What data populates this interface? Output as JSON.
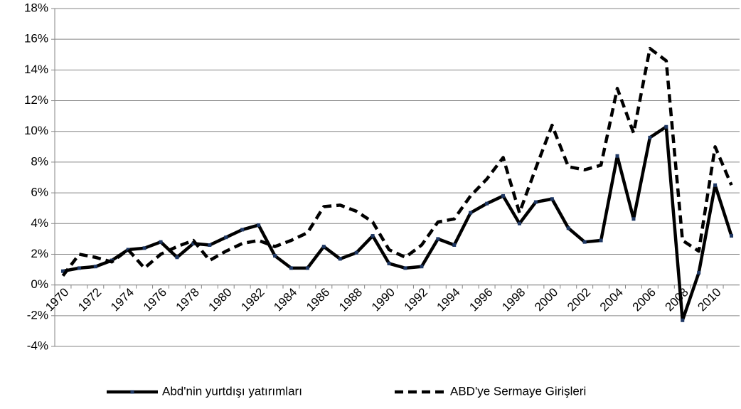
{
  "chart_data": {
    "type": "line",
    "categories": [
      "1970",
      null,
      "1972",
      null,
      "1974",
      null,
      "1976",
      null,
      "1978",
      null,
      "1980",
      null,
      "1982",
      null,
      "1984",
      null,
      "1986",
      null,
      "1988",
      null,
      "1990",
      null,
      "1992",
      null,
      "1994",
      null,
      "1996",
      null,
      "1998",
      null,
      "2000",
      null,
      "2002",
      null,
      "2004",
      null,
      "2006",
      null,
      "2008",
      null,
      "2010",
      null
    ],
    "series": [
      {
        "name": "Abd'nin yurtdışı yatırımları",
        "color": "#000000",
        "line_style": "solid",
        "marker": "square",
        "marker_color": "#1f3864",
        "values": [
          0.9,
          1.1,
          1.2,
          1.6,
          2.3,
          2.4,
          2.8,
          1.8,
          2.7,
          2.6,
          3.1,
          3.6,
          3.9,
          1.9,
          1.1,
          1.1,
          2.5,
          1.7,
          2.1,
          3.2,
          1.4,
          1.1,
          1.2,
          3.0,
          2.6,
          4.7,
          5.3,
          5.8,
          4.0,
          5.4,
          5.6,
          3.7,
          2.8,
          2.9,
          8.4,
          4.3,
          9.6,
          10.3,
          -2.3,
          0.8,
          6.5,
          3.2
        ]
      },
      {
        "name": "ABD'ye Sermaye Girişleri",
        "color": "#000000",
        "line_style": "dashed",
        "marker": "none",
        "values": [
          0.6,
          2.0,
          1.8,
          1.5,
          2.3,
          1.1,
          2.0,
          2.5,
          2.9,
          1.6,
          2.2,
          2.7,
          2.9,
          2.5,
          2.9,
          3.4,
          5.1,
          5.2,
          4.8,
          4.1,
          2.3,
          1.8,
          2.6,
          4.1,
          4.3,
          5.8,
          6.9,
          8.3,
          4.7,
          7.6,
          10.4,
          7.7,
          7.5,
          7.8,
          12.8,
          9.9,
          15.4,
          14.6,
          2.9,
          2.2,
          9.0,
          6.5
        ]
      }
    ],
    "ylim": [
      -4,
      18
    ],
    "yticks": [
      {
        "value": -4,
        "label": "-4%"
      },
      {
        "value": -2,
        "label": "-2%"
      },
      {
        "value": 0,
        "label": "0%"
      },
      {
        "value": 2,
        "label": "2%"
      },
      {
        "value": 4,
        "label": "4%"
      },
      {
        "value": 6,
        "label": "6%"
      },
      {
        "value": 8,
        "label": "8%"
      },
      {
        "value": 10,
        "label": "10%"
      },
      {
        "value": 12,
        "label": "12%"
      },
      {
        "value": 14,
        "label": "14%"
      },
      {
        "value": 16,
        "label": "16%"
      },
      {
        "value": 18,
        "label": "18%"
      }
    ],
    "grid": true,
    "legend": "bottom"
  }
}
